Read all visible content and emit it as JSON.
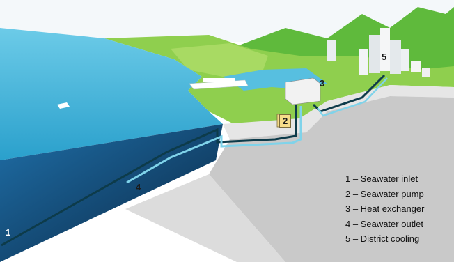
{
  "callouts": {
    "seawater_inlet": "1",
    "seawater_pump": "2",
    "heat_exchanger": "3",
    "seawater_outlet": "4",
    "district_cooling": "5"
  },
  "legend": [
    {
      "label": "1 – Seawater inlet"
    },
    {
      "label": "2 – Seawater pump"
    },
    {
      "label": "3 – Heat exchanger"
    },
    {
      "label": "4 – Seawater outlet"
    },
    {
      "label": "5 – District cooling"
    }
  ],
  "colors": {
    "sea_surface": "#2fa6cf",
    "deep_water": "#0b2f55",
    "land": "#8fcf4e",
    "hills": "#5fba3c",
    "ground_cut": "#cfcfcf",
    "pump_tag": "#f6dc8a",
    "pipe_dark": "#0d3b4a",
    "pipe_light": "#7fd3ea"
  }
}
